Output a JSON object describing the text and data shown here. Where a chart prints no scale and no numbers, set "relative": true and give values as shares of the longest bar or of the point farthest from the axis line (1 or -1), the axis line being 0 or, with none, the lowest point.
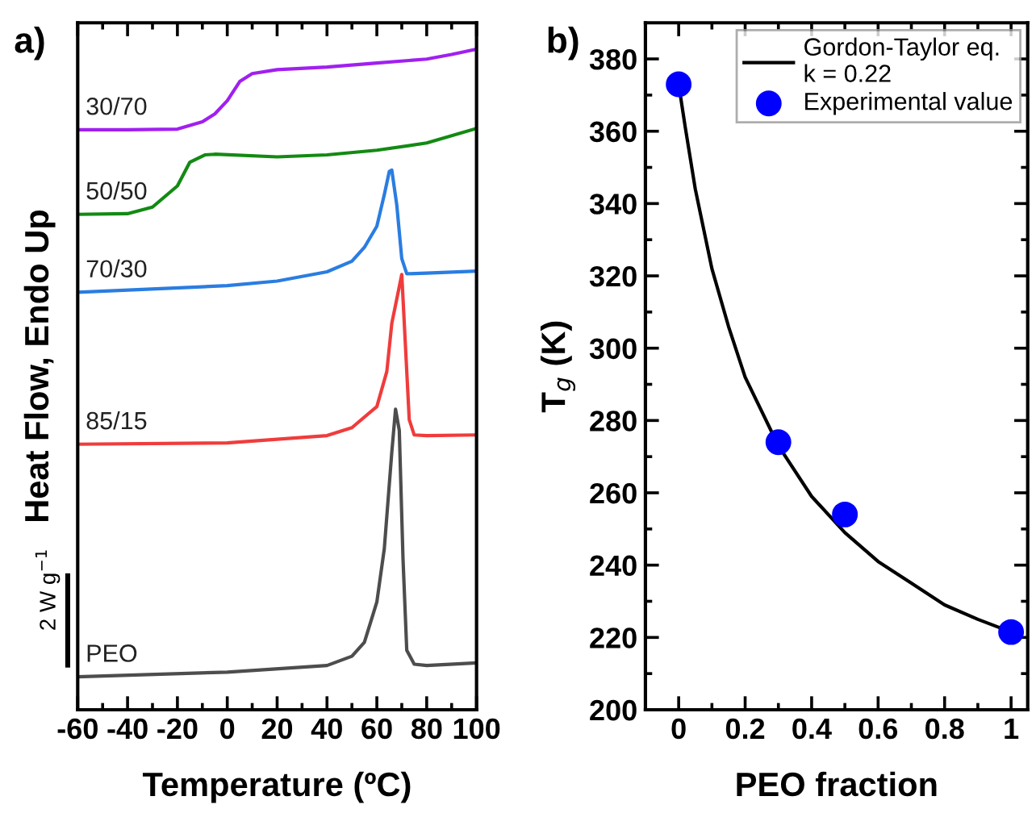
{
  "chart_data": [
    {
      "type": "line",
      "relative": true,
      "xlabel": "Temperature (ºC)",
      "ylabel": "Heat Flow, Endo Up",
      "xlim": [
        -60,
        100
      ],
      "xticks": [
        -60,
        -40,
        -20,
        0,
        20,
        40,
        60,
        80,
        100
      ],
      "tick_labels": "x",
      "grid": false,
      "legend": false,
      "marker": "none",
      "line_style": "solid",
      "annotations": [
        "a)",
        "2 W g$^{−1}$"
      ],
      "series": [
        {
          "name": "30/70",
          "color": "#a020f0",
          "x": [
            -60,
            -40,
            -20,
            -10,
            -5,
            0,
            5,
            10,
            20,
            40,
            60,
            80,
            90,
            100
          ],
          "values": [
            0.878,
            0.878,
            0.879,
            0.89,
            0.902,
            0.922,
            0.951,
            0.963,
            0.969,
            0.973,
            0.979,
            0.985,
            0.992,
            1
          ]
        },
        {
          "name": "50/50",
          "color": "#138a13",
          "x": [
            -60,
            -40,
            -30,
            -20,
            -15,
            -9,
            -5,
            20,
            40,
            60,
            80,
            100
          ],
          "values": [
            0.75,
            0.751,
            0.761,
            0.793,
            0.829,
            0.84,
            0.841,
            0.837,
            0.84,
            0.847,
            0.858,
            0.88
          ]
        },
        {
          "name": "70/30",
          "color": "#2a7de1",
          "x": [
            -60,
            0,
            20,
            40,
            50,
            55,
            60,
            63,
            65,
            66,
            68,
            70,
            72,
            80,
            100
          ],
          "values": [
            0.632,
            0.642,
            0.649,
            0.663,
            0.679,
            0.7,
            0.732,
            0.78,
            0.815,
            0.817,
            0.764,
            0.683,
            0.66,
            0.661,
            0.664
          ]
        },
        {
          "name": "85/15",
          "color": "#f03c3c",
          "x": [
            -60,
            0,
            40,
            50,
            60,
            64,
            66,
            68,
            70,
            73,
            75,
            80,
            100
          ],
          "values": [
            0.402,
            0.404,
            0.415,
            0.427,
            0.459,
            0.512,
            0.585,
            0.622,
            0.659,
            0.439,
            0.416,
            0.415,
            0.416
          ]
        },
        {
          "name": "PEO",
          "color": "#4d4d4d",
          "x": [
            -60,
            0,
            40,
            50,
            55,
            60,
            63,
            66,
            67.5,
            69,
            70.5,
            72,
            75,
            80,
            100
          ],
          "values": [
            0.05,
            0.057,
            0.067,
            0.081,
            0.102,
            0.163,
            0.244,
            0.39,
            0.455,
            0.423,
            0.228,
            0.09,
            0.069,
            0.067,
            0.071
          ]
        }
      ]
    },
    {
      "type": "scatter",
      "xlabel": "PEO fraction",
      "ylabel": "T$_{g}$ (K)",
      "xlim": [
        -0.1,
        1.05
      ],
      "xticks": [
        0,
        0.2,
        0.4,
        0.6,
        0.8,
        {
          "value": 1,
          "label": "1"
        }
      ],
      "ylim": [
        200,
        390
      ],
      "yticks": [
        200,
        220,
        240,
        260,
        280,
        300,
        320,
        340,
        360,
        380
      ],
      "grid": false,
      "legend": "top right",
      "annotations": [
        "b)"
      ],
      "series": [
        {
          "name": "Gordon-Taylor eq.\nk = 0.22",
          "type": "line",
          "marker": "none",
          "color": "#000000",
          "x": [
            0,
            0.02,
            0.05,
            0.1,
            0.15,
            0.2,
            0.3,
            0.4,
            0.5,
            0.6,
            0.7,
            0.8,
            0.9,
            1
          ],
          "values": [
            373,
            361,
            344,
            322,
            306,
            292,
            273,
            259,
            249,
            241,
            235,
            229,
            225,
            221.5
          ]
        },
        {
          "name": "Experimental value",
          "type": "scatter",
          "marker": "circle",
          "color": "#0000ff",
          "x": [
            0,
            0.3,
            0.5,
            1
          ],
          "values": [
            373,
            274,
            254,
            221.5
          ]
        }
      ]
    }
  ]
}
